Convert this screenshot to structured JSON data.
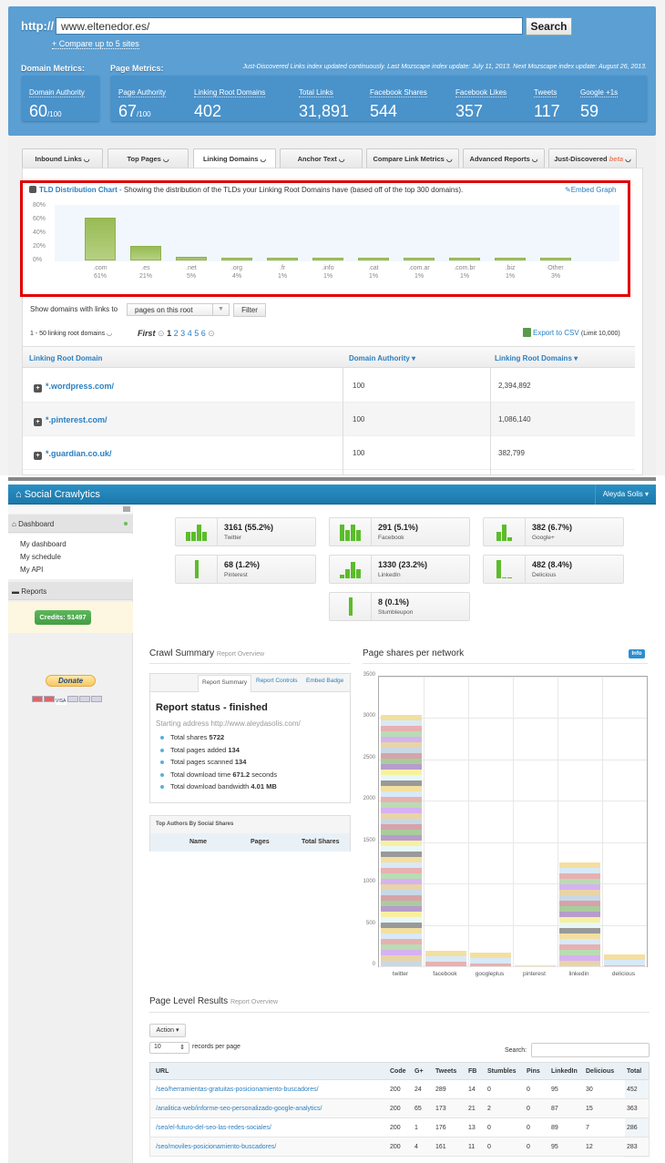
{
  "ose": {
    "http_label": "http://",
    "url_value": "www.eltenedor.es/",
    "search_label": "Search",
    "compare_link": "+ Compare up to 5 sites",
    "domain_metrics_label": "Domain Metrics:",
    "page_metrics_label": "Page Metrics:",
    "index_note": "Just-Discovered Links index updated continuously. Last Mozscape index update: July 11, 2013. Next Mozscape index update: August 26, 2013.",
    "domain_authority": {
      "label": "Domain Authority",
      "value": "60",
      "suffix": "/100"
    },
    "page_metrics": [
      {
        "label": "Page Authority",
        "value": "67",
        "suffix": "/100"
      },
      {
        "label": "Linking Root Domains",
        "value": "402"
      },
      {
        "label": "Total Links",
        "value": "31,891"
      },
      {
        "label": "Facebook Shares",
        "value": "544"
      },
      {
        "label": "Facebook Likes",
        "value": "357"
      },
      {
        "label": "Tweets",
        "value": "117"
      },
      {
        "label": "Google +1s",
        "value": "59"
      }
    ],
    "tabs": [
      {
        "label": "Inbound Links"
      },
      {
        "label": "Top Pages"
      },
      {
        "label": "Linking Domains",
        "active": true
      },
      {
        "label": "Anchor Text"
      },
      {
        "label": "Compare Link Metrics"
      },
      {
        "label": "Advanced Reports"
      },
      {
        "label": "Just-Discovered",
        "badge": "beta"
      }
    ],
    "tld_chart": {
      "title": "TLD Distribution Chart",
      "description": " - Showing the distribution of the TLDs your Linking Root Domains have (based off of the top 300 domains).",
      "embed_label": "Embed Graph",
      "y_ticks": [
        "80%",
        "60%",
        "40%",
        "20%",
        "0%"
      ]
    },
    "filter": {
      "label": "Show domains with links to",
      "select_value": "pages on this root",
      "button": "Filter"
    },
    "count_label": "1 - 50 linking root domains",
    "pagination": {
      "first": "First",
      "pages": [
        "1",
        "2",
        "3",
        "4",
        "5",
        "6"
      ]
    },
    "export": {
      "label": "Export to CSV",
      "limit": "(Limit 10,000)"
    },
    "table": {
      "headers": [
        "Linking Root Domain",
        "Domain Authority ▾",
        "Linking Root Domains ▾"
      ],
      "rows": [
        {
          "domain": "*.wordpress.com/",
          "da": "100",
          "lrd": "2,394,892"
        },
        {
          "domain": "*.pinterest.com/",
          "da": "100",
          "lrd": "1,086,140"
        },
        {
          "domain": "*.guardian.co.uk/",
          "da": "100",
          "lrd": "382,799"
        }
      ]
    }
  },
  "chart_data": [
    {
      "type": "bar",
      "title": "TLD Distribution Chart",
      "categories": [
        ".com",
        ".es",
        ".net",
        ".org",
        ".fr",
        ".info",
        ".cat",
        ".com.ar",
        ".com.br",
        ".biz",
        "Other"
      ],
      "values": [
        61,
        21,
        5,
        4,
        1,
        1,
        1,
        1,
        1,
        1,
        3
      ],
      "value_labels": [
        "61%",
        "21%",
        "5%",
        "4%",
        "1%",
        "1%",
        "1%",
        "1%",
        "1%",
        "1%",
        "3%"
      ],
      "xlabel": "",
      "ylabel": "%",
      "ylim": [
        0,
        80
      ],
      "y_ticks": [
        "0%",
        "20%",
        "40%",
        "60%",
        "80%"
      ],
      "grid": false
    },
    {
      "type": "bar",
      "title": "Page shares per network",
      "stacked": true,
      "categories": [
        "twitter",
        "facebook",
        "googleplus",
        "pinterest",
        "linkedin",
        "delicious"
      ],
      "values": [
        3040,
        190,
        165,
        5,
        1260,
        145
      ],
      "ylim": [
        0,
        3500
      ],
      "y_ticks": [
        "0",
        "500",
        "1000",
        "1500",
        "2000",
        "2500",
        "3000",
        "3500"
      ],
      "grid": true
    }
  ],
  "sc": {
    "brand": "Social Crawlytics",
    "user": "Aleyda Solis",
    "sidebar": {
      "dashboard": "Dashboard",
      "links": [
        "My dashboard",
        "My schedule",
        "My API"
      ],
      "reports": "Reports",
      "credits": "Credits: 51497",
      "donate": "Donate"
    },
    "tiles": [
      {
        "value": "3161 (55.2%)",
        "label": "Twitter",
        "bars": [
          10,
          10,
          18,
          10
        ]
      },
      {
        "value": "291 (5.1%)",
        "label": "Facebook",
        "bars": [
          18,
          12,
          18,
          12
        ]
      },
      {
        "value": "382 (6.7%)",
        "label": "Google+",
        "bars": [
          10,
          18,
          4
        ]
      },
      {
        "value": "68 (1.2%)",
        "label": "Pinterest",
        "bars": [
          20
        ]
      },
      {
        "value": "1330 (23.2%)",
        "label": "LinkedIn",
        "bars": [
          4,
          10,
          18,
          10
        ]
      },
      {
        "value": "482 (8.4%)",
        "label": "Delicious",
        "bars": [
          20,
          1,
          1
        ]
      },
      {
        "value": "8 (0.1%)",
        "label": "Stumbleupon",
        "bars": [
          20
        ]
      }
    ],
    "crawl_summary": {
      "title": "Crawl Summary",
      "subtitle": "Report Overview",
      "tabs": [
        "Report Summary",
        "Report Controls",
        "Embed Badge"
      ],
      "status": "Report status - finished",
      "address": "Starting address http://www.aleydasolis.com/",
      "items": [
        {
          "label": "Total shares ",
          "value": "5722",
          "unit": ""
        },
        {
          "label": "Total pages added ",
          "value": "134",
          "unit": ""
        },
        {
          "label": "Total pages scanned ",
          "value": "134",
          "unit": ""
        },
        {
          "label": "Total download time ",
          "value": "671.2",
          "unit": " seconds"
        },
        {
          "label": "Total download bandwidth ",
          "value": "4.01 MB",
          "unit": ""
        }
      ],
      "top_authors": {
        "title": "Top Authors By Social Shares",
        "headers": [
          "Name",
          "Pages",
          "Total Shares"
        ]
      }
    },
    "shares_chart": {
      "title": "Page shares per network",
      "info": "Info"
    },
    "page_results": {
      "title": "Page Level Results",
      "subtitle": "Report Overview",
      "action": "Action",
      "rpp_value": "10",
      "rpp_label": "records per page",
      "search_label": "Search:",
      "search_value": "",
      "headers": [
        "URL",
        "Code",
        "G+",
        "Tweets",
        "FB",
        "Stumbles",
        "Pins",
        "LinkedIn",
        "Delicious",
        "Total"
      ],
      "rows": [
        [
          "/seo/herramientas-gratuitas-posicionamiento-buscadores/",
          "200",
          "24",
          "289",
          "14",
          "0",
          "0",
          "95",
          "30",
          "452"
        ],
        [
          "/analitica-web/informe-seo-personalizado-google-analytics/",
          "200",
          "65",
          "173",
          "21",
          "2",
          "0",
          "87",
          "15",
          "363"
        ],
        [
          "/seo/el-futuro-del-seo-las-redes-sociales/",
          "200",
          "1",
          "176",
          "13",
          "0",
          "0",
          "89",
          "7",
          "286"
        ],
        [
          "/seo/moviles-posicionamiento-buscadores/",
          "200",
          "4",
          "161",
          "11",
          "0",
          "0",
          "95",
          "12",
          "283"
        ]
      ]
    }
  }
}
